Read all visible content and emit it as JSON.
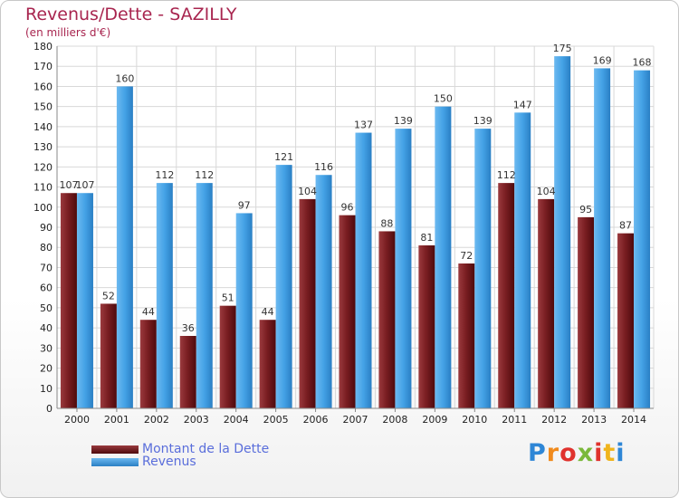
{
  "title": "Revenus/Dette - SAZILLY",
  "subtitle": "(en milliers d'€)",
  "logo_text": "Proxiti",
  "chart_data": {
    "type": "bar",
    "title": "Revenus/Dette - SAZILLY",
    "subtitle": "(en milliers d'€)",
    "categories": [
      "2000",
      "2001",
      "2002",
      "2003",
      "2004",
      "2005",
      "2006",
      "2007",
      "2008",
      "2009",
      "2010",
      "2011",
      "2012",
      "2013",
      "2014"
    ],
    "series": [
      {
        "name": "Montant de la Dette",
        "color": "#7a1e22",
        "values": [
          107,
          52,
          44,
          36,
          51,
          44,
          104,
          96,
          88,
          81,
          72,
          112,
          104,
          95,
          87
        ]
      },
      {
        "name": "Revenus",
        "color": "#3a9ae0",
        "values": [
          107,
          160,
          112,
          112,
          97,
          121,
          116,
          137,
          139,
          150,
          139,
          147,
          175,
          169,
          168
        ]
      }
    ],
    "ylim": [
      0,
      180
    ],
    "yticks": [
      0,
      10,
      20,
      30,
      40,
      50,
      60,
      70,
      80,
      90,
      100,
      110,
      120,
      130,
      140,
      150,
      160,
      170,
      180
    ],
    "grid": true,
    "legend_position": "bottom-left"
  }
}
